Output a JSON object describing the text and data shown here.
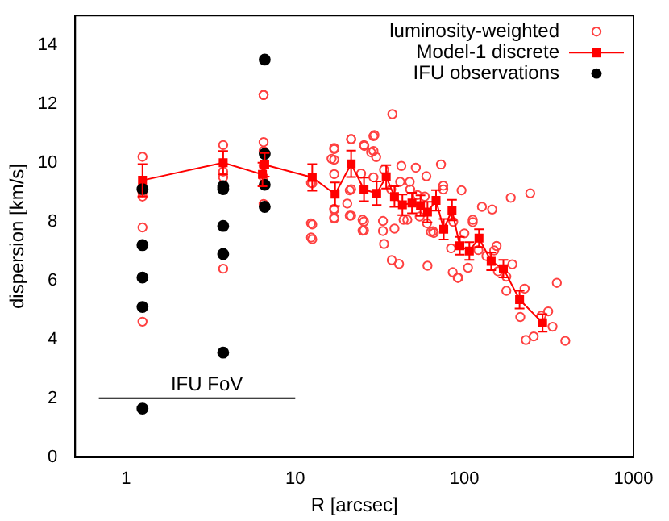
{
  "chart_data": {
    "type": "scatter",
    "xlabel": "R [arcsec]",
    "ylabel": "dispersion [km/s]",
    "log": "x",
    "xlim": [
      0.5,
      1000
    ],
    "xticks": [
      1,
      10,
      100,
      1000
    ],
    "ylim": [
      0,
      15
    ],
    "yticks": [
      0,
      2,
      4,
      6,
      8,
      10,
      12,
      14
    ],
    "legend": "top right",
    "annotations": [
      {
        "text": "IFU FoV",
        "x": 3,
        "y": 2
      }
    ],
    "series": [
      {
        "name": "luminosity-weighted",
        "marker": "circle",
        "color": "#ff4040",
        "x": [
          1.25,
          1.25,
          1.25,
          1.25,
          1.25,
          3.75,
          3.75,
          3.75,
          3.75,
          6.5,
          6.5,
          6.5,
          6.5,
          6.5,
          6.5,
          6.5,
          12.6,
          12.6,
          12.6,
          17,
          17,
          17,
          17,
          21.4,
          21.4,
          21.4,
          25.5,
          25.5,
          25.5,
          29,
          29,
          37.5,
          29.4,
          21.4,
          17,
          16.4,
          25.6,
          28.1,
          30.1,
          42.4,
          51.6,
          72.7,
          59.6,
          33.5,
          29,
          24.5,
          21,
          17,
          12.4,
          12.4,
          12.4,
          17,
          17,
          20.3,
          21,
          25,
          25,
          33,
          33,
          33.5,
          37.2,
          41.1,
          38.6,
          43.7,
          47.5,
          47.8,
          52.8,
          58.3,
          60.1,
          60.5,
          65.3,
          66,
          75,
          75,
          83.4,
          85.3,
          91.3,
          92,
          96.2,
          105,
          112,
          112,
          127,
          146,
          188,
          245,
          155,
          150,
          192,
          177,
          177,
          227,
          214,
          231,
          257,
          313,
          332,
          352,
          395,
          285,
          36.9,
          41.7,
          54.4,
          46,
          63.4,
          85.9,
          100,
          121,
          135,
          158
        ],
        "values": [
          10.2,
          9.0,
          8.85,
          7.8,
          4.6,
          10.6,
          9.7,
          9.5,
          6.4,
          12.3,
          12.3,
          10.7,
          10.4,
          9.9,
          9.5,
          8.6,
          9.3,
          7.9,
          7.4,
          10.5,
          10.1,
          8.1,
          8.4,
          10.8,
          9.1,
          8.2,
          10.6,
          7.7,
          8.0,
          10.9,
          10.4,
          11.65,
          10.94,
          10.8,
          10.46,
          10.13,
          10.57,
          10.35,
          10.19,
          9.89,
          9.83,
          9.94,
          9.54,
          9.76,
          9.5,
          9.63,
          9.06,
          9.61,
          9.31,
          7.94,
          7.46,
          8.43,
          8.13,
          8.61,
          8.2,
          8.06,
          7.69,
          8.02,
          7.68,
          7.24,
          6.69,
          6.56,
          7.76,
          8.06,
          9.35,
          9.09,
          8.9,
          8.85,
          7.94,
          6.5,
          7.67,
          7.61,
          9.09,
          9.22,
          7.09,
          6.28,
          6.09,
          6.09,
          9.06,
          6.43,
          7.98,
          8.06,
          8.5,
          8.41,
          8.81,
          8.96,
          7.17,
          7.02,
          6.55,
          6.13,
          5.65,
          5.72,
          4.76,
          3.98,
          4.1,
          4.95,
          4.43,
          5.92,
          3.95,
          4.8,
          9.09,
          9.35,
          8.17,
          8.06,
          7.65,
          7.99,
          7.6,
          7.03,
          6.83,
          6.31
        ]
      },
      {
        "name": "Model-1 discrete",
        "type": "line",
        "marker": "square",
        "color": "#ff0000",
        "x": [
          1.25,
          3.75,
          6.4,
          6.6,
          12.6,
          17.2,
          21.4,
          25.5,
          30.3,
          34.5,
          38.6,
          43,
          49,
          55,
          60.5,
          68,
          75.5,
          84.5,
          94,
          107,
          122,
          144,
          170,
          212,
          290
        ],
        "values": [
          9.4,
          10.0,
          9.6,
          9.93,
          9.5,
          8.93,
          9.96,
          9.09,
          8.96,
          9.52,
          8.85,
          8.57,
          8.63,
          8.54,
          8.32,
          8.72,
          7.74,
          8.39,
          7.18,
          7.0,
          7.44,
          6.65,
          6.4,
          5.35,
          4.56
        ],
        "errors": [
          0.55,
          0.4,
          0.4,
          0.4,
          0.45,
          0.4,
          0.45,
          0.4,
          0.4,
          0.4,
          0.35,
          0.35,
          0.35,
          0.35,
          0.35,
          0.35,
          0.35,
          0.35,
          0.3,
          0.3,
          0.3,
          0.3,
          0.3,
          0.3,
          0.3
        ]
      },
      {
        "name": "IFU observations",
        "marker": "circle",
        "color": "#000000",
        "x": [
          1.25,
          1.25,
          1.25,
          1.25,
          1.25,
          3.75,
          3.75,
          3.75,
          3.75,
          3.75,
          6.6,
          6.6,
          6.6,
          6.6
        ],
        "values": [
          9.1,
          7.2,
          6.1,
          5.1,
          1.65,
          9.2,
          9.1,
          7.85,
          6.9,
          3.55,
          13.5,
          10.3,
          9.25,
          8.5
        ]
      },
      {
        "type": "line",
        "marker": "none",
        "color": "#000000",
        "x": [
          0.69,
          10
        ],
        "values": [
          2,
          2
        ]
      }
    ]
  }
}
